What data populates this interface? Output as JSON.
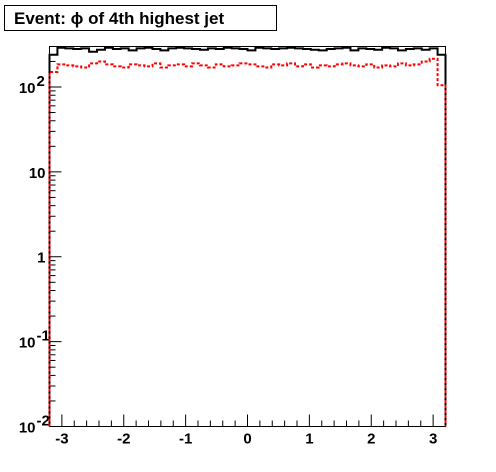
{
  "chart_data": {
    "type": "histogram",
    "title": "Event: ϕ of 4th highest jet",
    "xlabel": "",
    "ylabel": "",
    "xlim": [
      -3.2,
      3.2
    ],
    "ylim": [
      0.01,
      300
    ],
    "yscale": "log",
    "grid": false,
    "legend": "none",
    "x_ticks": [
      {
        "value": -3,
        "label": "-3"
      },
      {
        "value": -2,
        "label": "-2"
      },
      {
        "value": -1,
        "label": "-1"
      },
      {
        "value": 0,
        "label": "0"
      },
      {
        "value": 1,
        "label": "1"
      },
      {
        "value": 2,
        "label": "2"
      },
      {
        "value": 3,
        "label": "3"
      }
    ],
    "y_ticks": [
      {
        "value": 0.01,
        "base": "10",
        "exp": "-2"
      },
      {
        "value": 0.1,
        "base": "10",
        "exp": "-1"
      },
      {
        "value": 1,
        "base": "1",
        "exp": ""
      },
      {
        "value": 10,
        "base": "10",
        "exp": ""
      },
      {
        "value": 100,
        "base": "10",
        "exp": "2"
      }
    ],
    "bin_edges_start": -3.2,
    "bin_width": 0.128,
    "series": [
      {
        "color": "#000000",
        "line_style": "solid",
        "values": [
          240,
          290,
          285,
          280,
          285,
          260,
          275,
          290,
          280,
          285,
          270,
          285,
          290,
          280,
          270,
          285,
          290,
          285,
          280,
          275,
          285,
          280,
          290,
          285,
          280,
          270,
          290,
          285,
          280,
          285,
          290,
          285,
          280,
          275,
          270,
          280,
          285,
          290,
          270,
          285,
          280,
          275,
          290,
          285,
          270,
          280,
          285,
          275,
          285,
          240
        ]
      },
      {
        "color": "#ff0000",
        "line_style": "dashed",
        "values": [
          150,
          185,
          180,
          175,
          170,
          190,
          200,
          185,
          175,
          170,
          185,
          180,
          175,
          190,
          170,
          180,
          185,
          175,
          190,
          180,
          170,
          185,
          175,
          180,
          190,
          185,
          175,
          170,
          185,
          180,
          190,
          175,
          185,
          170,
          180,
          175,
          185,
          190,
          180,
          175,
          185,
          170,
          180,
          175,
          190,
          180,
          185,
          200,
          215,
          105
        ]
      }
    ]
  },
  "title_box": {
    "text": "Event: ϕ of 4th highest jet"
  }
}
